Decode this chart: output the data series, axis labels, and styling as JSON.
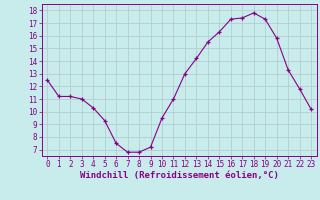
{
  "x": [
    0,
    1,
    2,
    3,
    4,
    5,
    6,
    7,
    8,
    9,
    10,
    11,
    12,
    13,
    14,
    15,
    16,
    17,
    18,
    19,
    20,
    21,
    22,
    23
  ],
  "y": [
    12.5,
    11.2,
    11.2,
    11.0,
    10.3,
    9.3,
    7.5,
    6.8,
    6.8,
    7.2,
    9.5,
    11.0,
    13.0,
    14.2,
    15.5,
    16.3,
    17.3,
    17.4,
    17.8,
    17.3,
    15.8,
    13.3,
    11.8,
    10.2
  ],
  "xlabel": "Windchill (Refroidissement éolien,°C)",
  "line_color": "#880088",
  "marker": "+",
  "bg_color": "#c8ecec",
  "grid_color": "#b0c8c8",
  "tick_color": "#880088",
  "label_color": "#880088",
  "ylim": [
    6.5,
    18.5
  ],
  "xlim": [
    -0.5,
    23.5
  ],
  "yticks": [
    7,
    8,
    9,
    10,
    11,
    12,
    13,
    14,
    15,
    16,
    17,
    18
  ],
  "xticks": [
    0,
    1,
    2,
    3,
    4,
    5,
    6,
    7,
    8,
    9,
    10,
    11,
    12,
    13,
    14,
    15,
    16,
    17,
    18,
    19,
    20,
    21,
    22,
    23
  ],
  "tick_fontsize": 5.5,
  "xlabel_fontsize": 6.5
}
